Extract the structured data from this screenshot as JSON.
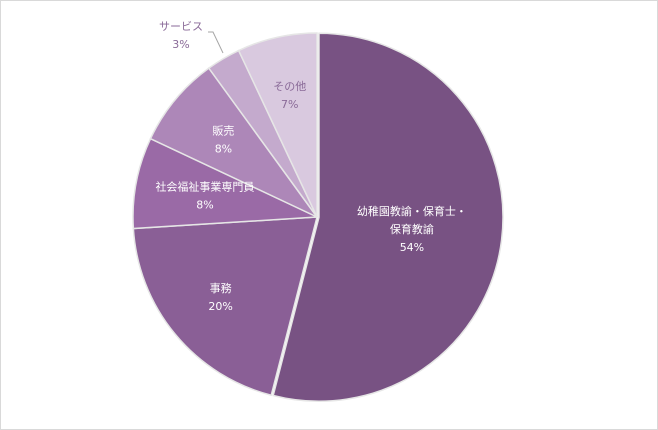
{
  "chart_data": {
    "type": "pie",
    "title": "",
    "start": "top",
    "direction": "clockwise",
    "slices": [
      {
        "label": "幼稚園教諭・保育士・保育教諭",
        "label_lines": [
          "幼稚園教諭・保育士・",
          "保育教諭"
        ],
        "value": 54,
        "value_label": "54%",
        "color": "#785283",
        "label_color": "#ffffff"
      },
      {
        "label": "事務",
        "label_lines": [
          "事務"
        ],
        "value": 20,
        "value_label": "20%",
        "color": "#8a5f96",
        "label_color": "#ffffff"
      },
      {
        "label": "社会福祉事業専門員",
        "label_lines": [
          "社会福祉事業専門員"
        ],
        "value": 8,
        "value_label": "8%",
        "color": "#9a6aa6",
        "label_color": "#ffffff"
      },
      {
        "label": "販売",
        "label_lines": [
          "販売"
        ],
        "value": 8,
        "value_label": "8%",
        "color": "#ad87b8",
        "label_color": "#ffffff"
      },
      {
        "label": "サービス",
        "label_lines": [
          "サービス"
        ],
        "value": 3,
        "value_label": "3%",
        "color": "#c4aacd",
        "label_color": "#8a6a98",
        "label_outside": true
      },
      {
        "label": "その他",
        "label_lines": [
          "その他"
        ],
        "value": 7,
        "value_label": "7%",
        "color": "#d9c9df",
        "label_color": "#8a6a98"
      }
    ],
    "legend": "none"
  }
}
